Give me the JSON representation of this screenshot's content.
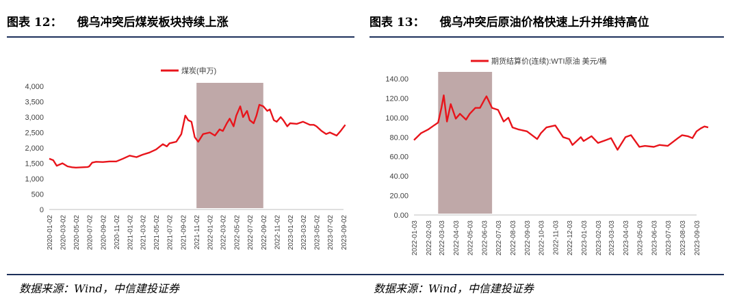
{
  "figures": [
    {
      "number": "图表 12：",
      "title": "俄乌冲突后煤炭板块持续上涨",
      "source": "数据来源：Wind，中信建投证券",
      "chart_data": {
        "type": "line",
        "legend": "煤炭(申万)",
        "legend_position": "top",
        "line_color": "#e8141b",
        "shade_color": "#bfa8a8",
        "x_ticks": [
          "2020-01-02",
          "2020-03-02",
          "2020-05-02",
          "2020-07-02",
          "2020-09-02",
          "2020-11-02",
          "2021-01-02",
          "2021-03-02",
          "2021-05-02",
          "2021-07-02",
          "2021-09-02",
          "2021-11-02",
          "2022-01-02",
          "2022-03-02",
          "2022-05-02",
          "2022-07-02",
          "2022-09-02",
          "2022-11-02",
          "2023-01-02",
          "2023-03-02",
          "2023-05-02",
          "2023-07-02",
          "2023-09-02"
        ],
        "y_ticks": [
          "4,000",
          "3,500",
          "3,000",
          "2,500",
          "2,000",
          "1,500",
          "1,000",
          "500",
          "0"
        ],
        "ylim": [
          0,
          4000
        ],
        "shaded_range": [
          "2021-11-02",
          "2022-09-02"
        ],
        "points": [
          [
            "2020-01-02",
            1650
          ],
          [
            "2020-01-20",
            1600
          ],
          [
            "2020-02-05",
            1420
          ],
          [
            "2020-03-02",
            1500
          ],
          [
            "2020-03-25",
            1400
          ],
          [
            "2020-04-15",
            1370
          ],
          [
            "2020-05-02",
            1360
          ],
          [
            "2020-06-01",
            1370
          ],
          [
            "2020-06-25",
            1380
          ],
          [
            "2020-07-02",
            1400
          ],
          [
            "2020-07-15",
            1520
          ],
          [
            "2020-08-02",
            1550
          ],
          [
            "2020-09-02",
            1540
          ],
          [
            "2020-10-02",
            1560
          ],
          [
            "2020-11-02",
            1560
          ],
          [
            "2020-12-02",
            1650
          ],
          [
            "2021-01-02",
            1750
          ],
          [
            "2021-02-02",
            1700
          ],
          [
            "2021-03-02",
            1780
          ],
          [
            "2021-04-02",
            1850
          ],
          [
            "2021-05-02",
            1950
          ],
          [
            "2021-06-02",
            2120
          ],
          [
            "2021-06-20",
            2050
          ],
          [
            "2021-07-02",
            2150
          ],
          [
            "2021-08-02",
            2200
          ],
          [
            "2021-08-25",
            2450
          ],
          [
            "2021-09-12",
            3050
          ],
          [
            "2021-09-25",
            2900
          ],
          [
            "2021-10-10",
            2850
          ],
          [
            "2021-10-25",
            2350
          ],
          [
            "2021-11-10",
            2200
          ],
          [
            "2021-12-02",
            2450
          ],
          [
            "2022-01-02",
            2500
          ],
          [
            "2022-01-25",
            2400
          ],
          [
            "2022-02-15",
            2600
          ],
          [
            "2022-03-02",
            2550
          ],
          [
            "2022-03-20",
            2800
          ],
          [
            "2022-04-02",
            2950
          ],
          [
            "2022-04-20",
            2700
          ],
          [
            "2022-05-02",
            3050
          ],
          [
            "2022-05-20",
            3350
          ],
          [
            "2022-06-02",
            3000
          ],
          [
            "2022-06-20",
            3200
          ],
          [
            "2022-07-02",
            2900
          ],
          [
            "2022-07-20",
            2800
          ],
          [
            "2022-08-02",
            3050
          ],
          [
            "2022-08-15",
            3400
          ],
          [
            "2022-09-02",
            3350
          ],
          [
            "2022-09-20",
            3200
          ],
          [
            "2022-10-02",
            3250
          ],
          [
            "2022-10-20",
            2900
          ],
          [
            "2022-11-02",
            2850
          ],
          [
            "2022-11-20",
            3000
          ],
          [
            "2022-12-02",
            2900
          ],
          [
            "2022-12-20",
            2700
          ],
          [
            "2023-01-02",
            2800
          ],
          [
            "2023-02-02",
            2780
          ],
          [
            "2023-03-02",
            2850
          ],
          [
            "2023-04-02",
            2750
          ],
          [
            "2023-04-20",
            2750
          ],
          [
            "2023-05-02",
            2700
          ],
          [
            "2023-05-25",
            2550
          ],
          [
            "2023-06-15",
            2450
          ],
          [
            "2023-07-02",
            2500
          ],
          [
            "2023-08-02",
            2400
          ],
          [
            "2023-08-20",
            2550
          ],
          [
            "2023-09-10",
            2750
          ]
        ]
      }
    },
    {
      "number": "图表 13：",
      "title": "俄乌冲突后原油价格快速上升并维持高位",
      "source": "数据来源：Wind，中信建投证券",
      "chart_data": {
        "type": "line",
        "legend": "期货结算价(连续):WTI原油 美元/桶",
        "legend_position": "top",
        "line_color": "#e8141b",
        "shade_color": "#bfa8a8",
        "x_ticks": [
          "2022-01-03",
          "2022-02-03",
          "2022-03-03",
          "2022-04-03",
          "2022-05-03",
          "2022-06-03",
          "2022-07-03",
          "2022-08-03",
          "2022-09-03",
          "2022-10-03",
          "2022-11-03",
          "2022-12-03",
          "2023-01-03",
          "2023-02-03",
          "2023-03-03",
          "2023-04-03",
          "2023-05-03",
          "2023-06-03",
          "2023-07-03",
          "2023-08-03",
          "2023-09-03"
        ],
        "y_ticks": [
          "140.00",
          "120.00",
          "100.00",
          "80.00",
          "60.00",
          "40.00",
          "20.00",
          "0.00"
        ],
        "ylim": [
          0,
          140
        ],
        "shaded_range": [
          "2022-02-24",
          "2022-06-20"
        ],
        "points": [
          [
            "2022-01-03",
            77
          ],
          [
            "2022-01-18",
            84
          ],
          [
            "2022-02-03",
            88
          ],
          [
            "2022-02-15",
            92
          ],
          [
            "2022-02-24",
            95
          ],
          [
            "2022-03-03",
            110
          ],
          [
            "2022-03-08",
            123
          ],
          [
            "2022-03-15",
            96
          ],
          [
            "2022-03-23",
            114
          ],
          [
            "2022-04-03",
            99
          ],
          [
            "2022-04-12",
            104
          ],
          [
            "2022-04-25",
            98
          ],
          [
            "2022-05-03",
            104
          ],
          [
            "2022-05-15",
            110
          ],
          [
            "2022-05-25",
            110
          ],
          [
            "2022-06-03",
            118
          ],
          [
            "2022-06-08",
            122
          ],
          [
            "2022-06-20",
            110
          ],
          [
            "2022-07-03",
            108
          ],
          [
            "2022-07-15",
            96
          ],
          [
            "2022-07-25",
            100
          ],
          [
            "2022-08-03",
            90
          ],
          [
            "2022-08-15",
            88
          ],
          [
            "2022-09-03",
            86
          ],
          [
            "2022-09-25",
            78
          ],
          [
            "2022-10-03",
            84
          ],
          [
            "2022-10-15",
            90
          ],
          [
            "2022-11-03",
            92
          ],
          [
            "2022-11-20",
            80
          ],
          [
            "2022-12-03",
            78
          ],
          [
            "2022-12-10",
            72
          ],
          [
            "2022-12-28",
            80
          ],
          [
            "2023-01-03",
            76
          ],
          [
            "2023-01-20",
            81
          ],
          [
            "2023-02-03",
            74
          ],
          [
            "2023-02-20",
            77
          ],
          [
            "2023-03-03",
            79
          ],
          [
            "2023-03-17",
            67
          ],
          [
            "2023-04-03",
            80
          ],
          [
            "2023-04-15",
            82
          ],
          [
            "2023-05-03",
            70
          ],
          [
            "2023-05-15",
            71
          ],
          [
            "2023-06-03",
            70
          ],
          [
            "2023-06-15",
            72
          ],
          [
            "2023-07-03",
            71
          ],
          [
            "2023-07-25",
            79
          ],
          [
            "2023-08-03",
            82
          ],
          [
            "2023-08-15",
            81
          ],
          [
            "2023-08-25",
            79
          ],
          [
            "2023-09-03",
            86
          ],
          [
            "2023-09-12",
            89
          ],
          [
            "2023-09-20",
            91
          ],
          [
            "2023-09-28",
            90
          ]
        ]
      }
    }
  ]
}
